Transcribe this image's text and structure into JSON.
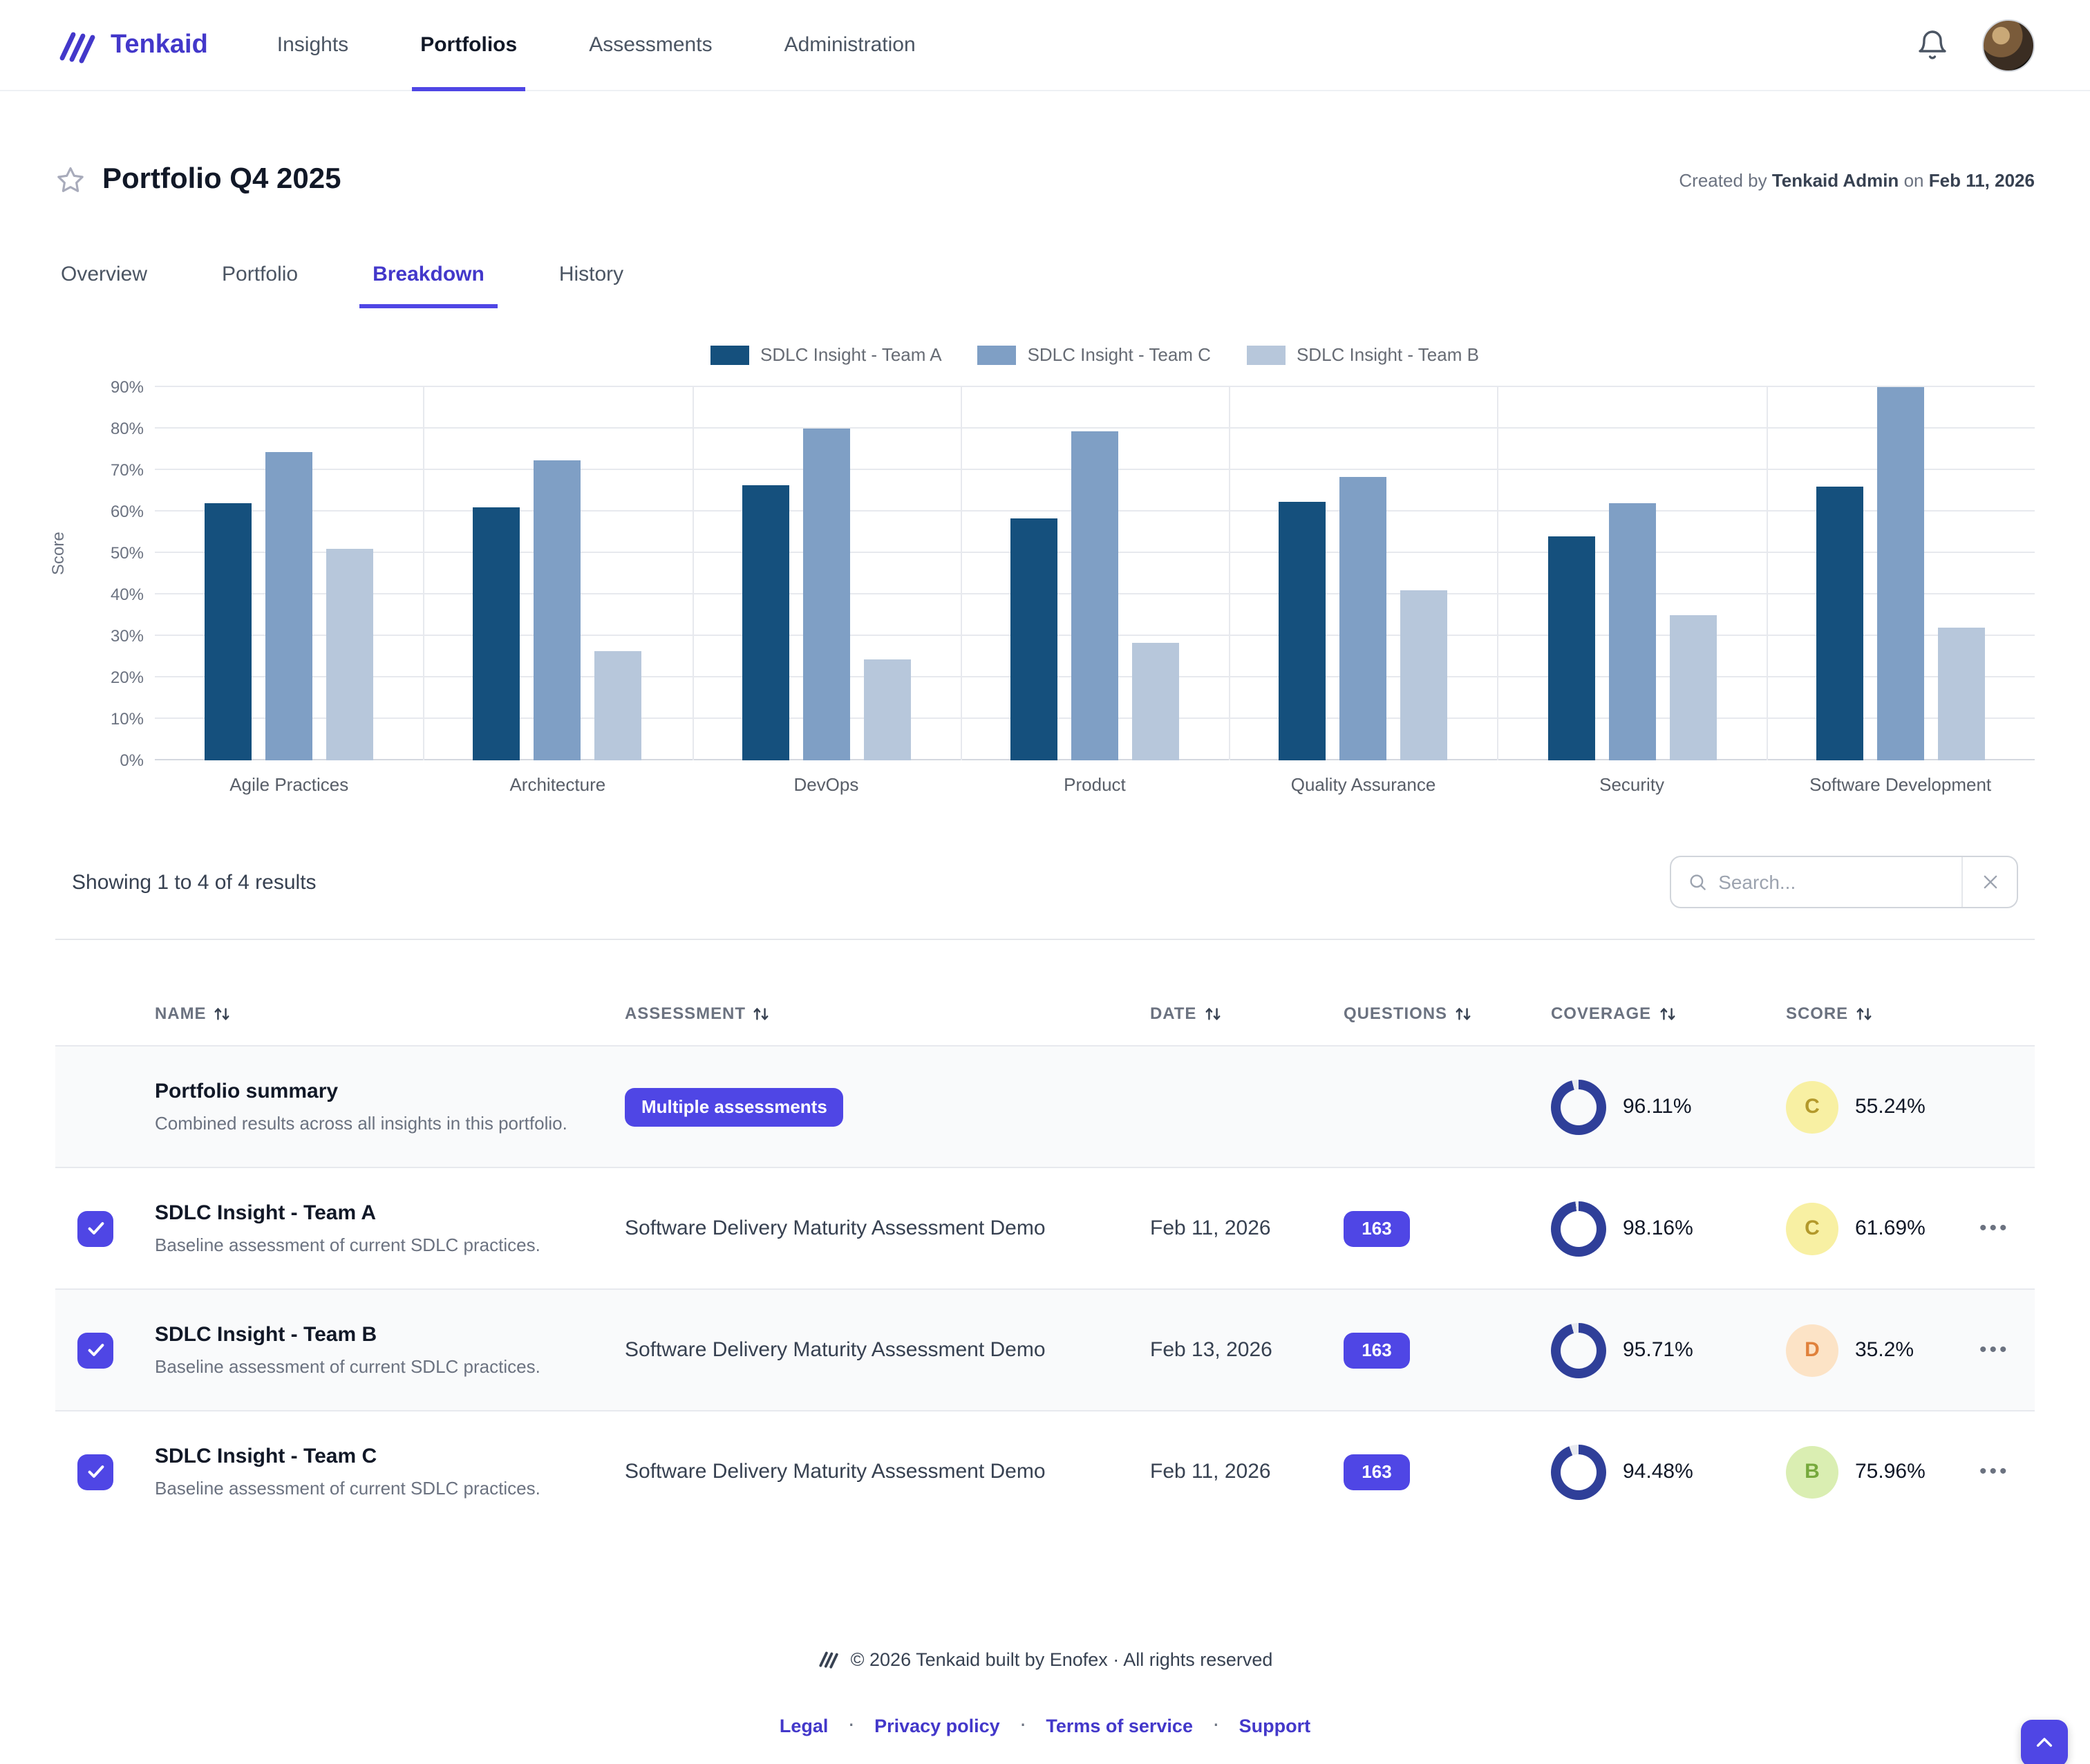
{
  "theme": {
    "accent": "#4f46e5",
    "brand": "#4338ca",
    "donut_color": "#2f3f99",
    "grid": "#e7e9ee",
    "stripe": "#f9fafb"
  },
  "nav": {
    "brand": "Tenkaid",
    "items": [
      {
        "label": "Insights",
        "active": false
      },
      {
        "label": "Portfolios",
        "active": true
      },
      {
        "label": "Assessments",
        "active": false
      },
      {
        "label": "Administration",
        "active": false
      }
    ]
  },
  "header": {
    "title": "Portfolio Q4 2025",
    "created_prefix": "Created by",
    "created_by": "Tenkaid Admin",
    "created_on_word": "on",
    "created_date": "Feb 11, 2026"
  },
  "tabs": [
    {
      "label": "Overview",
      "active": false
    },
    {
      "label": "Portfolio",
      "active": false
    },
    {
      "label": "Breakdown",
      "active": true
    },
    {
      "label": "History",
      "active": false
    }
  ],
  "chart_data": {
    "type": "bar",
    "categories": [
      "Agile Practices",
      "Architecture",
      "DevOps",
      "Product",
      "Quality Assurance",
      "Security",
      "Software Development"
    ],
    "series": [
      {
        "name": "SDLC Insight - Team A",
        "color": "#15507d",
        "values": [
          62,
          61,
          66.5,
          58.5,
          62.5,
          54,
          66
        ]
      },
      {
        "name": "SDLC Insight - Team C",
        "color": "#7f9fc5",
        "values": [
          74.5,
          72.5,
          80,
          79.5,
          68.5,
          62,
          90
        ]
      },
      {
        "name": "SDLC Insight - Team B",
        "color": "#b7c7db",
        "values": [
          51,
          26.5,
          24.5,
          28.5,
          41,
          35,
          32
        ]
      }
    ],
    "title": "",
    "xlabel": "",
    "ylabel": "Score",
    "ylim": [
      0,
      90
    ],
    "ytick_step": 10,
    "ytick_suffix": "%",
    "grid": true,
    "legend_position": "top"
  },
  "results": {
    "summary_text": "Showing 1 to 4 of 4 results"
  },
  "search": {
    "placeholder": "Search..."
  },
  "table": {
    "columns": [
      {
        "label": "Name",
        "sortable": true
      },
      {
        "label": "Assessment",
        "sortable": true
      },
      {
        "label": "Date",
        "sortable": true
      },
      {
        "label": "Questions",
        "sortable": true
      },
      {
        "label": "Coverage",
        "sortable": true
      },
      {
        "label": "Score",
        "sortable": true
      }
    ],
    "rows": [
      {
        "name": "Portfolio summary",
        "description": "Combined results across all insights in this portfolio.",
        "assessment_badge": "Multiple assessments",
        "coverage": "96.11%",
        "coverage_value": 96.11,
        "grade": "C",
        "grade_bg": "#f8f0a3",
        "grade_fg": "#b3992b",
        "score": "55.24%"
      },
      {
        "name": "SDLC Insight - Team A",
        "description": "Baseline assessment of current SDLC practices.",
        "assessment": "Software Delivery Maturity Assessment Demo",
        "date": "Feb 11, 2026",
        "questions": "163",
        "coverage": "98.16%",
        "coverage_value": 98.16,
        "grade": "C",
        "grade_bg": "#f8f0a3",
        "grade_fg": "#b3992b",
        "score": "61.69%",
        "checked": true
      },
      {
        "name": "SDLC Insight - Team B",
        "description": "Baseline assessment of current SDLC practices.",
        "assessment": "Software Delivery Maturity Assessment Demo",
        "date": "Feb 13, 2026",
        "questions": "163",
        "coverage": "95.71%",
        "coverage_value": 95.71,
        "grade": "D",
        "grade_bg": "#fce3c6",
        "grade_fg": "#e0813b",
        "score": "35.2%",
        "checked": true
      },
      {
        "name": "SDLC Insight - Team C",
        "description": "Baseline assessment of current SDLC practices.",
        "assessment": "Software Delivery Maturity Assessment Demo",
        "date": "Feb 11, 2026",
        "questions": "163",
        "coverage": "94.48%",
        "coverage_value": 94.48,
        "grade": "B",
        "grade_bg": "#daeeb2",
        "grade_fg": "#76a93c",
        "score": "75.96%",
        "checked": true
      }
    ]
  },
  "footer": {
    "copyright": "© 2026 Tenkaid built by Enofex · All rights reserved",
    "separator": "·",
    "links": [
      {
        "label": "Legal"
      },
      {
        "label": "Privacy policy"
      },
      {
        "label": "Terms of service"
      },
      {
        "label": "Support"
      }
    ]
  }
}
